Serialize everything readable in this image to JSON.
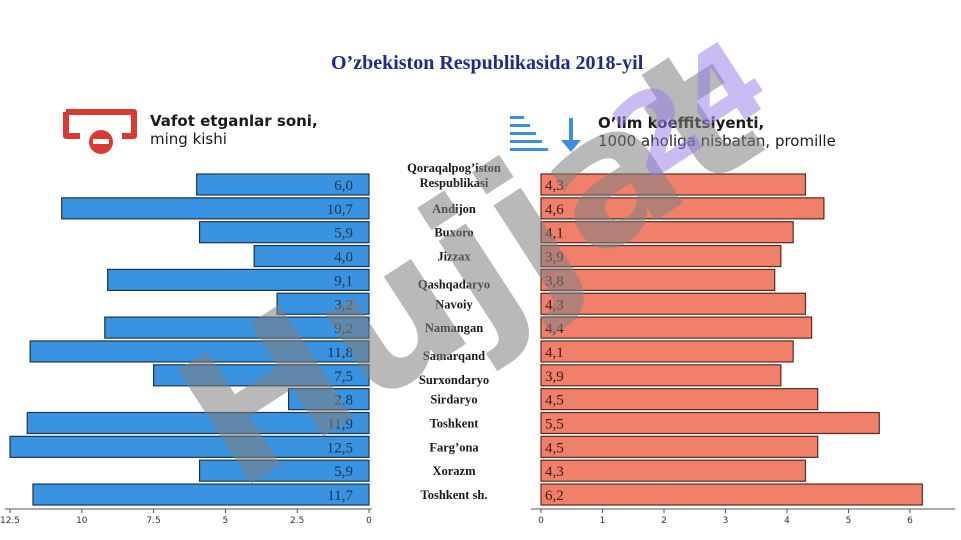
{
  "title": "O’zbekiston Respublikasida 2018-yil",
  "legend": {
    "left_line1": "Vafot etganlar soni,",
    "left_line2": "ming kishi",
    "right_line1": "O’lim koeffitsiyenti,",
    "right_line2": "1000 aholiga nisbatan, promille"
  },
  "watermark": {
    "main": "Hujjat",
    "accent": "24"
  },
  "colors": {
    "left_bar": "#3a93e0",
    "right_bar": "#f0806a",
    "title": "#1f2a8a",
    "icon_red": "#d93a34",
    "icon_blue": "#3a8fe0"
  },
  "chart_data": [
    {
      "type": "bar",
      "orientation": "horizontal",
      "direction": "right-to-left",
      "categories": [
        "Qoraqalpog’iston Respublikasi",
        "Andijon",
        "Buxoro",
        "Jizzax",
        "Qashqadaryo",
        "Navoiy",
        "Namangan",
        "Samarqand",
        "Surxondaryo",
        "Sirdaryo",
        "Toshkent",
        "Farg’ona",
        "Xorazm",
        "Toshkent sh."
      ],
      "values": [
        6.0,
        10.7,
        5.9,
        4.0,
        9.1,
        3.2,
        9.2,
        11.8,
        7.5,
        2.8,
        11.9,
        12.5,
        5.9,
        11.7
      ],
      "value_labels": [
        "6,0",
        "10,7",
        "5,9",
        "4,0",
        "9,1",
        "3,2",
        "9,2",
        "11,8",
        "7,5",
        "2,8",
        "11,9",
        "12,5",
        "5,9",
        "11,7"
      ],
      "xlim": [
        0,
        12.5
      ],
      "ticks": [
        "12.5",
        "10",
        "7.5",
        "5",
        "2.5",
        "0"
      ],
      "tick_values": [
        12.5,
        10,
        7.5,
        5,
        2.5,
        0
      ]
    },
    {
      "type": "bar",
      "orientation": "horizontal",
      "direction": "left-to-right",
      "categories": [
        "Qoraqalpog’iston Respublikasi",
        "Andijon",
        "Buxoro",
        "Jizzax",
        "Qashqadaryo",
        "Navoiy",
        "Namangan",
        "Samarqand",
        "Surxondaryo",
        "Sirdaryo",
        "Toshkent",
        "Farg’ona",
        "Xorazm",
        "Toshkent sh."
      ],
      "values": [
        4.3,
        4.6,
        4.1,
        3.9,
        3.8,
        4.3,
        4.4,
        4.1,
        3.9,
        4.5,
        5.5,
        4.5,
        4.3,
        6.2
      ],
      "value_labels": [
        "4,3",
        "4,6",
        "4,1",
        "3,9",
        "3,8",
        "4,3",
        "4,4",
        "4,1",
        "3,9",
        "4,5",
        "5,5",
        "4,5",
        "4,3",
        "6,2"
      ],
      "xlim": [
        0,
        6.3
      ],
      "ticks": [
        "0",
        "1",
        "2",
        "3",
        "4",
        "5",
        "6"
      ],
      "tick_values": [
        0,
        1,
        2,
        3,
        4,
        5,
        6
      ]
    }
  ],
  "region_labels": [
    [
      "Qoraqalpog’iston",
      "Respublikasi"
    ],
    [
      "Andijon"
    ],
    [
      "Buxoro"
    ],
    [
      "Jizzax"
    ],
    [
      "Qashqadaryo"
    ],
    [
      "Navoiy"
    ],
    [
      "Namangan"
    ],
    [
      "Samarqand"
    ],
    [
      "Surxondaryo"
    ],
    [
      "Sirdaryo"
    ],
    [
      "Toshkent"
    ],
    [
      "Farg’ona"
    ],
    [
      "Xorazm"
    ],
    [
      "Toshkent sh."
    ]
  ]
}
